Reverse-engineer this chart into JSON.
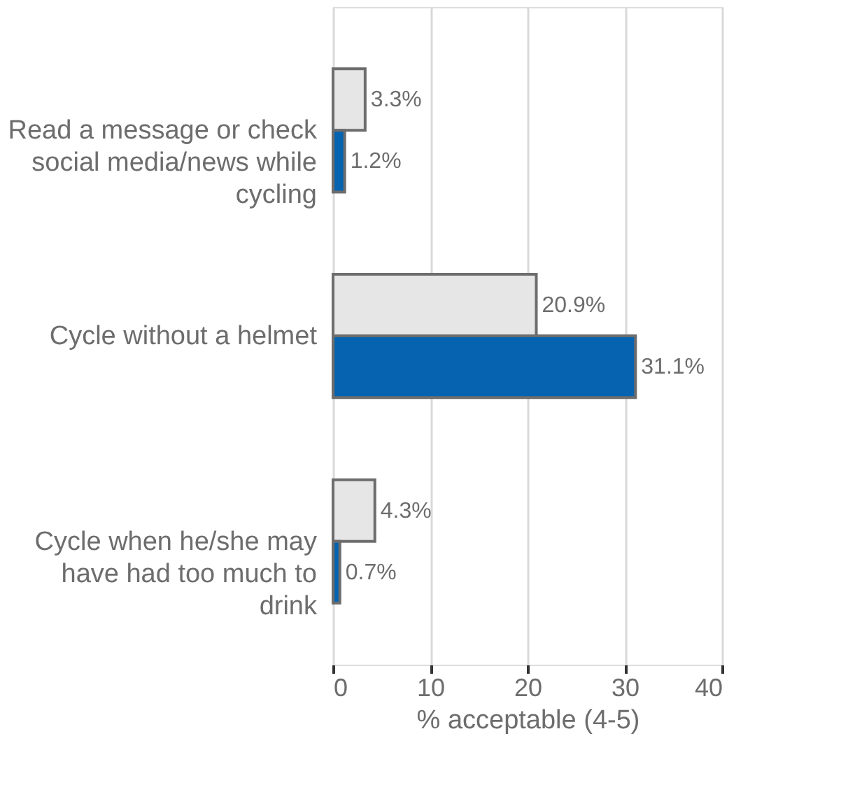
{
  "chart_data": {
    "type": "bar",
    "orientation": "horizontal",
    "xlabel": "% acceptable (4-5)",
    "categories": [
      "Read a message or check social media/news while cycling",
      "Cycle without a helmet",
      "Cycle when he/she may have had too much to drink"
    ],
    "series": [
      {
        "color": "#e6e6e6",
        "values": [
          3.3,
          20.9,
          4.3
        ],
        "value_labels": [
          "3.3%",
          "20.9%",
          "4.3%"
        ]
      },
      {
        "color": "#0563b0",
        "values": [
          1.2,
          31.1,
          0.7
        ],
        "value_labels": [
          "1.2%",
          "31.1%",
          "0.7%"
        ]
      }
    ],
    "xlim": [
      0,
      40
    ],
    "xticks": [
      0,
      10,
      20,
      30,
      40
    ],
    "grid": "x"
  }
}
